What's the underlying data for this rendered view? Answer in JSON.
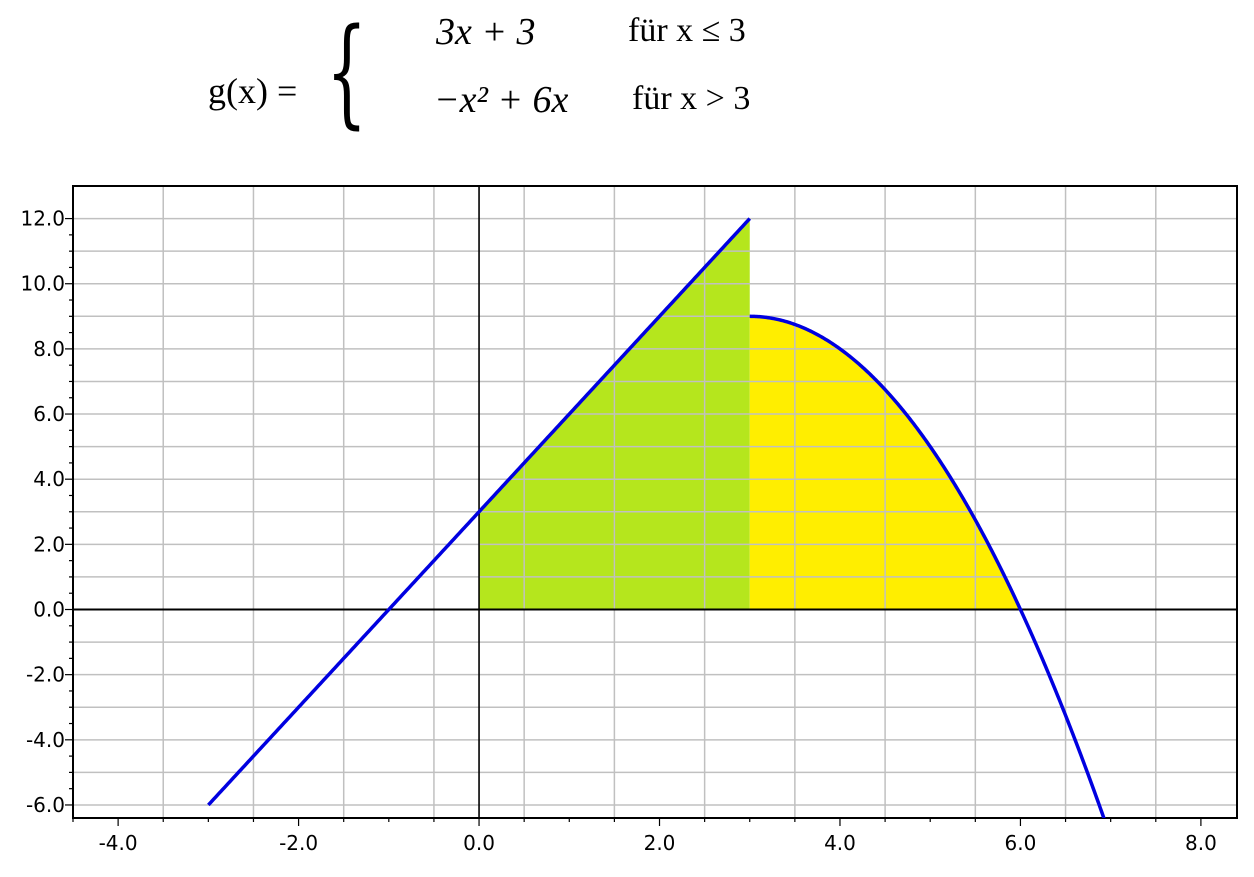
{
  "formula": {
    "lhs": "g(x) =",
    "cases": [
      {
        "expr": "3x + 3",
        "condition": "für x ≤ 3"
      },
      {
        "expr": "−x² + 6x",
        "condition": "für x > 3"
      }
    ]
  },
  "chart_data": {
    "type": "line",
    "title": "",
    "xlabel": "",
    "ylabel": "",
    "xlim": [
      -4.5,
      8.4
    ],
    "ylim": [
      -6.4,
      13.0
    ],
    "grid": true,
    "x_ticks": [
      -4.0,
      -2.0,
      0.0,
      2.0,
      4.0,
      6.0,
      8.0
    ],
    "y_ticks": [
      -6.0,
      -4.0,
      -2.0,
      0.0,
      2.0,
      4.0,
      6.0,
      8.0,
      10.0,
      12.0
    ],
    "x_tick_labels": [
      "-4.0",
      "-2.0",
      "0.0",
      "2.0",
      "4.0",
      "6.0",
      "8.0"
    ],
    "y_tick_labels": [
      "-6.0",
      "-4.0",
      "-2.0",
      "0.0",
      "2.0",
      "4.0",
      "6.0",
      "8.0",
      "10.0",
      "12.0"
    ],
    "series": [
      {
        "expression": "3x + 3",
        "domain": [
          -3,
          3
        ],
        "color": "#0000e0"
      },
      {
        "expression": "-x^2 + 6x",
        "domain": [
          3,
          6.95
        ],
        "color": "#0000e0"
      }
    ],
    "shaded_regions": [
      {
        "under": "3x + 3",
        "x_range": [
          0,
          3
        ],
        "color": "#b5e61d"
      },
      {
        "under": "-x^2 + 6x",
        "x_range": [
          3,
          6
        ],
        "color": "#ffee00"
      }
    ]
  }
}
